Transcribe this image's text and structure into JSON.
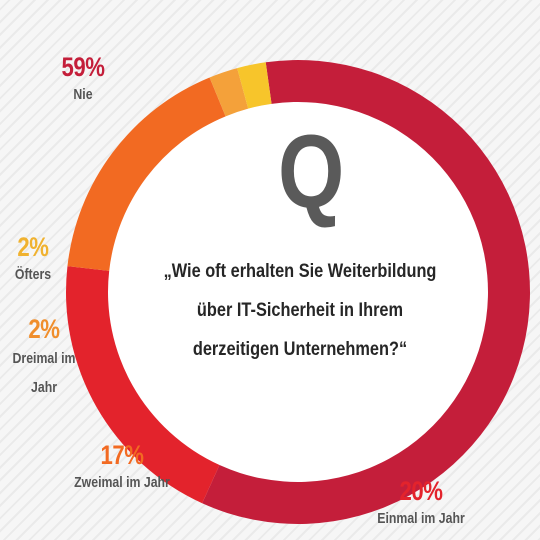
{
  "chart_data": {
    "type": "donut",
    "title": "„Wie oft erhalten Sie Weiterbildung über IT-Sicherheit in Ihrem derzeitigen Unternehmen?“",
    "categories": [
      "Nie",
      "Einmal im Jahr",
      "Zweimal im Jahr",
      "Dreimal im Jahr",
      "Öfters"
    ],
    "values": [
      59,
      20,
      17,
      2,
      2
    ],
    "unit": "%",
    "labels": [
      {
        "pct": "59%",
        "name": "Nie"
      },
      {
        "pct": "20%",
        "name": "Einmal im Jahr"
      },
      {
        "pct": "17%",
        "name": "Zweimal im Jahr"
      },
      {
        "pct": "2%",
        "name": "Dreimal im\nJahr"
      },
      {
        "pct": "2%",
        "name": "Öfters"
      }
    ],
    "colors": [
      "#c41e3a",
      "#e3232c",
      "#f26a22",
      "#f4a13a",
      "#f7c52b"
    ],
    "legend": "none"
  },
  "center": {
    "icon": "q-letter",
    "letter": "Q",
    "question": "„Wie oft erhalten Sie Weiterbildung\nüber IT-Sicherheit in Ihrem\nderzeitigen Unternehmen?“"
  }
}
